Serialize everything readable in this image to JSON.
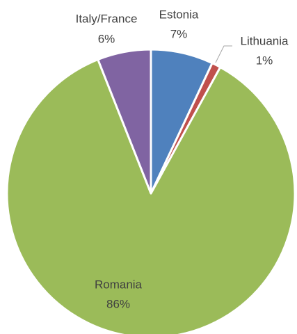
{
  "chart_data": {
    "type": "pie",
    "categories": [
      "Estonia",
      "Lithuania",
      "Romania",
      "Italy/France"
    ],
    "values": [
      7,
      1,
      86,
      6
    ],
    "value_labels": [
      "7%",
      "1%",
      "86%",
      "6%"
    ],
    "colors": [
      "#4f81bd",
      "#c0504d",
      "#9bbb59",
      "#8064a2"
    ]
  }
}
